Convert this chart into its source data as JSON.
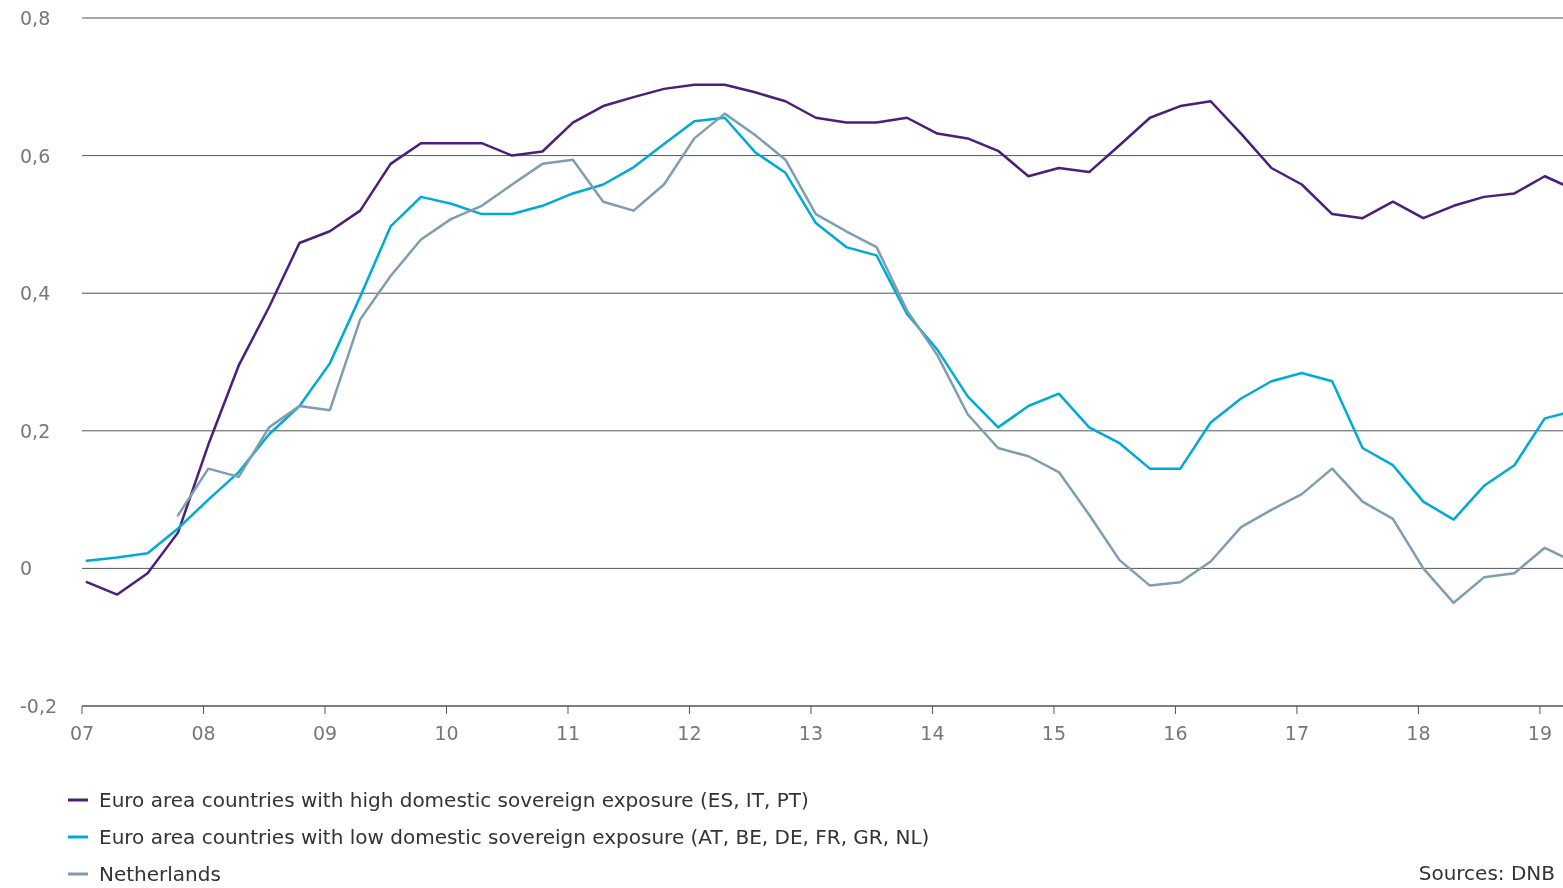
{
  "chart_data": {
    "type": "line",
    "x": [
      2007.04,
      2007.29,
      2007.54,
      2007.79,
      2008.04,
      2008.29,
      2008.54,
      2008.79,
      2009.04,
      2009.29,
      2009.54,
      2009.79,
      2010.04,
      2010.29,
      2010.54,
      2010.79,
      2011.04,
      2011.29,
      2011.54,
      2011.79,
      2012.04,
      2012.29,
      2012.54,
      2012.79,
      2013.04,
      2013.29,
      2013.54,
      2013.79,
      2014.04,
      2014.29,
      2014.54,
      2014.79,
      2015.04,
      2015.29,
      2015.54,
      2015.79,
      2016.04,
      2016.29,
      2016.54,
      2016.79,
      2017.04,
      2017.29,
      2017.54,
      2017.79,
      2018.04,
      2018.29,
      2018.54,
      2018.79,
      2019.04,
      2019.19
    ],
    "series": [
      {
        "name": "Euro area countries with high domestic sovereign exposure (ES, IT, PT)",
        "color": "#4b1e7a",
        "values": [
          -0.02,
          -0.038,
          -0.007,
          0.052,
          0.18,
          0.295,
          0.38,
          0.473,
          0.49,
          0.52,
          0.588,
          0.618,
          0.618,
          0.618,
          0.6,
          0.606,
          0.648,
          0.672,
          0.685,
          0.697,
          0.703,
          0.703,
          0.692,
          0.679,
          0.655,
          0.648,
          0.648,
          0.655,
          0.632,
          0.625,
          0.607,
          0.57,
          0.582,
          0.576,
          0.615,
          0.655,
          0.672,
          0.679,
          0.632,
          0.582,
          0.558,
          0.515,
          0.509,
          0.533,
          0.509,
          0.527,
          0.54,
          0.545,
          0.57,
          0.558
        ]
      },
      {
        "name": "Euro area countries with low domestic sovereign exposure (AT, BE, DE, FR, GR, NL)",
        "color": "#00aad8",
        "values": [
          0.011,
          0.016,
          0.022,
          0.058,
          0.1,
          0.14,
          0.195,
          0.236,
          0.298,
          0.395,
          0.497,
          0.54,
          0.53,
          0.515,
          0.515,
          0.527,
          0.545,
          0.558,
          0.583,
          0.617,
          0.65,
          0.655,
          0.605,
          0.575,
          0.502,
          0.467,
          0.455,
          0.37,
          0.318,
          0.25,
          0.205,
          0.236,
          0.254,
          0.205,
          0.182,
          0.145,
          0.145,
          0.212,
          0.247,
          0.272,
          0.284,
          0.272,
          0.175,
          0.15,
          0.097,
          0.071,
          0.12,
          0.15,
          0.218,
          0.225
        ]
      },
      {
        "name": "Netherlands",
        "color": "#7f9db0",
        "values": [
          null,
          null,
          null,
          0.077,
          0.145,
          0.133,
          0.205,
          0.236,
          0.23,
          0.362,
          0.425,
          0.478,
          0.508,
          0.527,
          0.558,
          0.588,
          0.594,
          0.533,
          0.52,
          0.558,
          0.625,
          0.661,
          0.63,
          0.594,
          0.515,
          0.49,
          0.467,
          0.375,
          0.31,
          0.224,
          0.175,
          0.163,
          0.14,
          0.078,
          0.012,
          -0.025,
          -0.02,
          0.01,
          0.06,
          0.085,
          0.108,
          0.145,
          0.097,
          0.072,
          0.0,
          -0.05,
          -0.013,
          -0.007,
          0.03,
          0.017
        ]
      }
    ],
    "xlim": [
      2007,
      2019.19
    ],
    "xticks": [
      {
        "value": 2007,
        "label": "07"
      },
      {
        "value": 2008,
        "label": "08"
      },
      {
        "value": 2009,
        "label": "09"
      },
      {
        "value": 2010,
        "label": "10"
      },
      {
        "value": 2011,
        "label": "11"
      },
      {
        "value": 2012,
        "label": "12"
      },
      {
        "value": 2013,
        "label": "13"
      },
      {
        "value": 2014,
        "label": "14"
      },
      {
        "value": 2015,
        "label": "15"
      },
      {
        "value": 2016,
        "label": "16"
      },
      {
        "value": 2017,
        "label": "17"
      },
      {
        "value": 2018,
        "label": "18"
      },
      {
        "value": 2019,
        "label": "19"
      }
    ],
    "ylim": [
      -0.2,
      0.8
    ],
    "yticks": [
      {
        "value": -0.2,
        "label": "-0,2"
      },
      0,
      {
        "value": 0.2,
        "label": "0,2"
      },
      {
        "value": 0.4,
        "label": "0,4"
      },
      {
        "value": 0.6,
        "label": "0,6"
      },
      {
        "value": 0.8,
        "label": "0,8"
      }
    ],
    "grid": "y",
    "legend": "bottom left",
    "marker": "none",
    "line_style": "solid",
    "annotations": [
      "Sources: DNB"
    ]
  }
}
